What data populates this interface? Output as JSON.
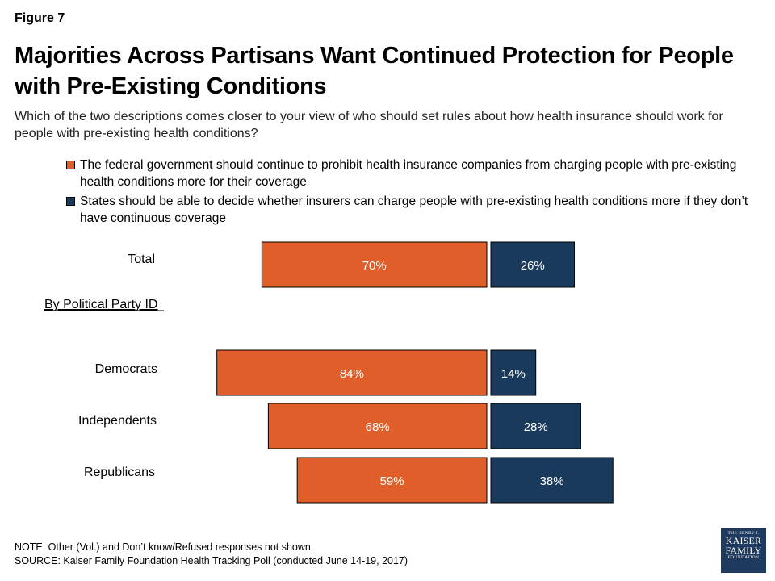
{
  "figure_label": "Figure 7",
  "title": "Majorities Across Partisans Want Continued Protection for People with Pre-Existing Conditions",
  "question": "Which of the two descriptions comes closer to your view of who should set rules about how health insurance should work for people with pre-existing health conditions?",
  "colors": {
    "federal": "#e05e2a",
    "states": "#1a3a5c"
  },
  "chart_data": {
    "type": "bar",
    "orientation": "diverging-horizontal",
    "section_label": "By Political Party ID",
    "categories": [
      "Total",
      "Democrats",
      "Independents",
      "Republicans"
    ],
    "series": [
      {
        "name": "The federal government should continue to prohibit health insurance companies from charging people with pre-existing health conditions more for their coverage",
        "values": [
          70,
          84,
          68,
          59
        ],
        "labels": [
          "70%",
          "84%",
          "68%",
          "59%"
        ],
        "color": "#e05e2a"
      },
      {
        "name": "States should be able to decide whether insurers can charge people with pre-existing health conditions more if they don’t have continuous coverage",
        "values": [
          26,
          14,
          28,
          38
        ],
        "labels": [
          "26%",
          "14%",
          "28%",
          "38%"
        ],
        "color": "#1a3a5c"
      }
    ],
    "legend_position": "top",
    "grid": false
  },
  "notes": {
    "note": "NOTE: Other (Vol.) and Don’t know/Refused responses not shown.",
    "source": "SOURCE: Kaiser Family Foundation Health Tracking Poll (conducted June 14-19, 2017)"
  },
  "logo": {
    "top": "THE HENRY J.",
    "line1": "KAISER",
    "line2": "FAMILY",
    "bottom": "FOUNDATION"
  }
}
